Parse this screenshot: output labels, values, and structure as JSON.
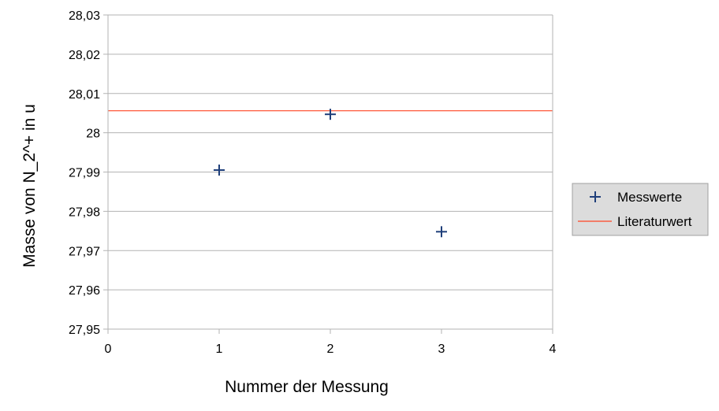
{
  "chart_data": {
    "type": "scatter",
    "xlabel": "Nummer der Messung",
    "ylabel": "Masse von N_2^+ in u",
    "xlim": [
      0,
      4
    ],
    "ylim": [
      27.95,
      28.03
    ],
    "x_ticks": [
      "0",
      "1",
      "2",
      "3",
      "4"
    ],
    "y_ticks": [
      "27,95",
      "27,96",
      "27,97",
      "27,98",
      "27,99",
      "28",
      "28,01",
      "28,02",
      "28,03"
    ],
    "grid": "horizontal",
    "legend_position": "right",
    "series": [
      {
        "name": "Messwerte",
        "marker": "plus",
        "color": "#1f3f7a",
        "x": [
          1,
          2,
          3
        ],
        "y": [
          27.9905,
          28.0047,
          27.9748
        ]
      },
      {
        "name": "Literaturwert",
        "marker": "line",
        "color": "#ff4422",
        "y_constant": 28.0056
      }
    ]
  }
}
